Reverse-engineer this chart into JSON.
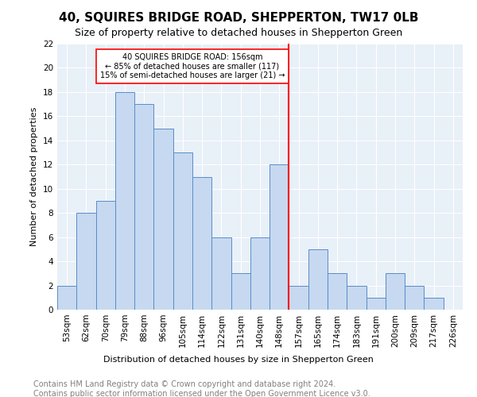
{
  "title": "40, SQUIRES BRIDGE ROAD, SHEPPERTON, TW17 0LB",
  "subtitle": "Size of property relative to detached houses in Shepperton Green",
  "xlabel": "Distribution of detached houses by size in Shepperton Green",
  "ylabel": "Number of detached properties",
  "footnote1": "Contains HM Land Registry data © Crown copyright and database right 2024.",
  "footnote2": "Contains public sector information licensed under the Open Government Licence v3.0.",
  "bin_labels": [
    "53sqm",
    "62sqm",
    "70sqm",
    "79sqm",
    "88sqm",
    "96sqm",
    "105sqm",
    "114sqm",
    "122sqm",
    "131sqm",
    "140sqm",
    "148sqm",
    "157sqm",
    "165sqm",
    "174sqm",
    "183sqm",
    "191sqm",
    "200sqm",
    "209sqm",
    "217sqm",
    "226sqm"
  ],
  "bar_values": [
    2,
    8,
    9,
    18,
    17,
    15,
    13,
    11,
    6,
    3,
    6,
    12,
    2,
    5,
    3,
    2,
    1,
    3,
    2,
    1,
    0
  ],
  "bar_color": "#c6d9f0",
  "bar_edge_color": "#5b8cc8",
  "vline_x": 12,
  "vline_color": "red",
  "annotation_text": "40 SQUIRES BRIDGE ROAD: 156sqm\n← 85% of detached houses are smaller (117)\n15% of semi-detached houses are larger (21) →",
  "annotation_box_color": "white",
  "annotation_box_edge_color": "red",
  "ylim": [
    0,
    22
  ],
  "yticks": [
    0,
    2,
    4,
    6,
    8,
    10,
    12,
    14,
    16,
    18,
    20,
    22
  ],
  "background_color": "#e8f0f8",
  "grid_color": "white",
  "title_fontsize": 11,
  "subtitle_fontsize": 9,
  "axis_label_fontsize": 8,
  "tick_fontsize": 7.5,
  "footnote_fontsize": 7
}
